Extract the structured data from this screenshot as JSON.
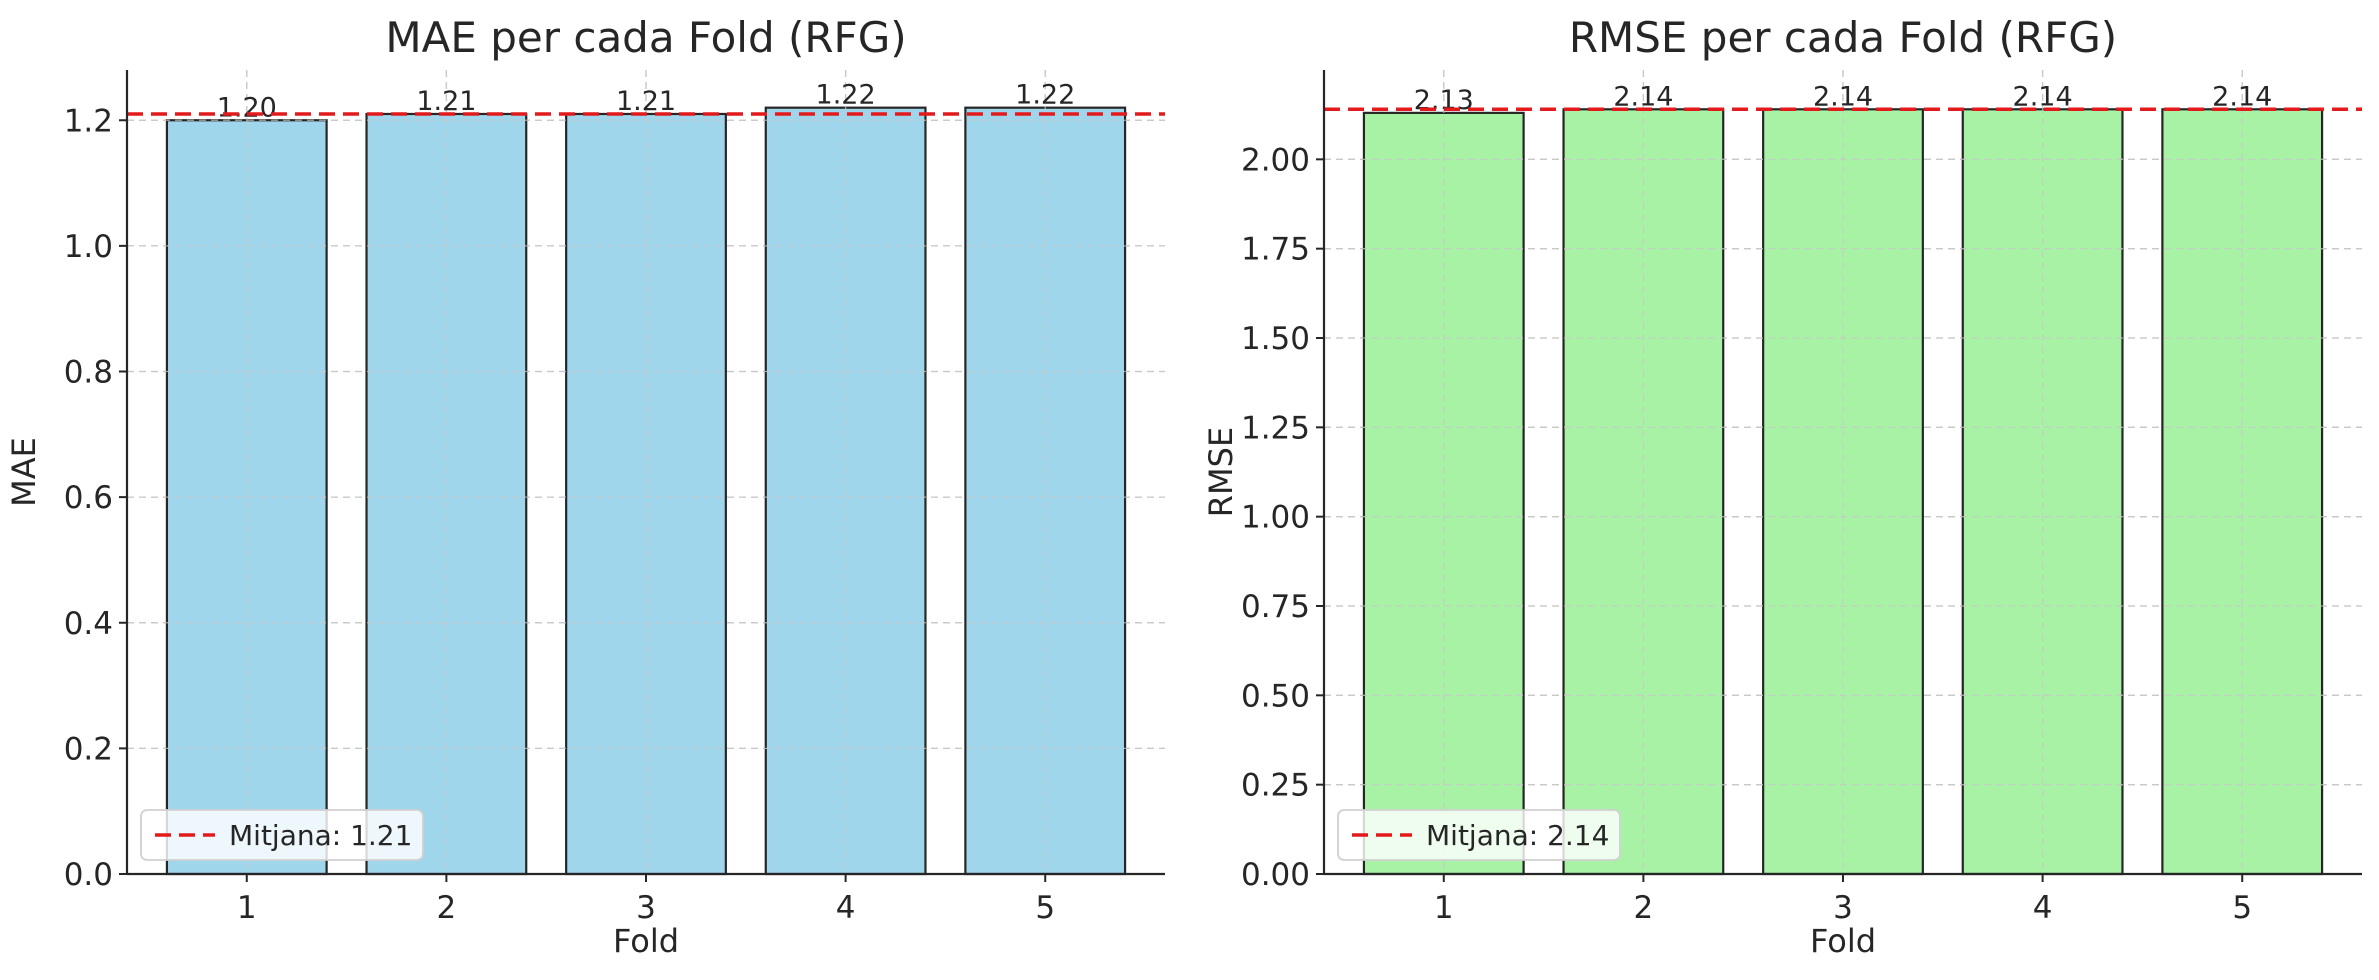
{
  "chart_data": [
    {
      "type": "bar",
      "title": "MAE per cada Fold (RFG)",
      "xlabel": "Fold",
      "ylabel": "MAE",
      "categories": [
        "1",
        "2",
        "3",
        "4",
        "5"
      ],
      "values": [
        1.2,
        1.21,
        1.21,
        1.22,
        1.22
      ],
      "value_labels": [
        "1.20",
        "1.21",
        "1.21",
        "1.22",
        "1.22"
      ],
      "ylim": [
        0,
        1.28
      ],
      "yticks": [
        0.0,
        0.2,
        0.4,
        0.6,
        0.8,
        1.0,
        1.2
      ],
      "ytick_labels": [
        "0.0",
        "0.2",
        "0.4",
        "0.6",
        "0.8",
        "1.0",
        "1.2"
      ],
      "bar_color": "#a0d6ec",
      "mean": 1.21,
      "mean_color": "#e31a1c",
      "legend": {
        "label": "Mitjana: 1.21",
        "position": "lower-left"
      },
      "grid": true
    },
    {
      "type": "bar",
      "title": "RMSE per cada Fold (RFG)",
      "xlabel": "Fold",
      "ylabel": "RMSE",
      "categories": [
        "1",
        "2",
        "3",
        "4",
        "5"
      ],
      "values": [
        2.13,
        2.14,
        2.14,
        2.14,
        2.14
      ],
      "value_labels": [
        "2.13",
        "2.14",
        "2.14",
        "2.14",
        "2.14"
      ],
      "ylim": [
        0,
        2.25
      ],
      "yticks": [
        0.0,
        0.25,
        0.5,
        0.75,
        1.0,
        1.25,
        1.5,
        1.75,
        2.0
      ],
      "ytick_labels": [
        "0.00",
        "0.25",
        "0.50",
        "0.75",
        "1.00",
        "1.25",
        "1.50",
        "1.75",
        "2.00"
      ],
      "bar_color": "#a8f2a5",
      "mean": 2.14,
      "mean_color": "#e31a1c",
      "legend": {
        "label": "Mitjana: 2.14",
        "position": "lower-left"
      },
      "grid": true
    }
  ]
}
